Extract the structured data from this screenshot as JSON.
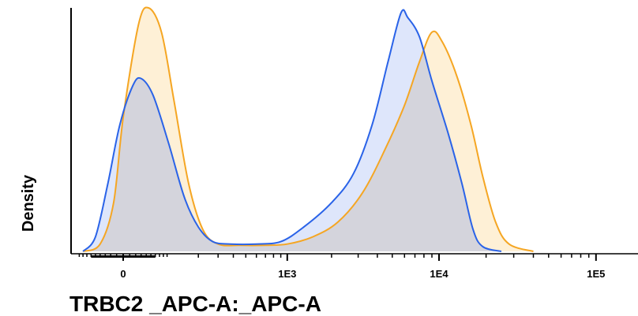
{
  "chart_data": {
    "type": "area",
    "xlabel": "TRBC2 _APC-A:_APC-A",
    "ylabel": "Density",
    "x_scale": "biexponential",
    "x_ticks": [
      {
        "value": 0,
        "label": "0"
      },
      {
        "value": 1000,
        "label": "1E3"
      },
      {
        "value": 10000,
        "label": "1E4"
      },
      {
        "value": 100000,
        "label": "1E5"
      }
    ],
    "ylim": [
      0,
      1
    ],
    "grid": false,
    "legend": "none",
    "overlap_color": "#d4d4dc",
    "series": [
      {
        "color": "#f5a623",
        "fill": "#fdebc8",
        "points": [
          [
            -80,
            0.0
          ],
          [
            -40,
            0.03
          ],
          [
            -15,
            0.2
          ],
          [
            0,
            0.55
          ],
          [
            25,
            0.93
          ],
          [
            45,
            1.0
          ],
          [
            75,
            0.9
          ],
          [
            110,
            0.62
          ],
          [
            160,
            0.28
          ],
          [
            220,
            0.09
          ],
          [
            300,
            0.03
          ],
          [
            450,
            0.025
          ],
          [
            700,
            0.025
          ],
          [
            1000,
            0.03
          ],
          [
            1500,
            0.06
          ],
          [
            2200,
            0.12
          ],
          [
            3200,
            0.24
          ],
          [
            4500,
            0.42
          ],
          [
            6000,
            0.6
          ],
          [
            7500,
            0.78
          ],
          [
            9000,
            0.9
          ],
          [
            10500,
            0.86
          ],
          [
            13000,
            0.72
          ],
          [
            16000,
            0.52
          ],
          [
            19000,
            0.31
          ],
          [
            23000,
            0.12
          ],
          [
            28000,
            0.03
          ],
          [
            40000,
            0.0
          ]
        ]
      },
      {
        "color": "#2a63e8",
        "fill": "#d3defa",
        "points": [
          [
            -80,
            0.0
          ],
          [
            -50,
            0.06
          ],
          [
            -25,
            0.28
          ],
          [
            -5,
            0.52
          ],
          [
            15,
            0.68
          ],
          [
            30,
            0.71
          ],
          [
            55,
            0.64
          ],
          [
            95,
            0.44
          ],
          [
            145,
            0.22
          ],
          [
            200,
            0.1
          ],
          [
            270,
            0.04
          ],
          [
            380,
            0.03
          ],
          [
            600,
            0.03
          ],
          [
            900,
            0.04
          ],
          [
            1300,
            0.1
          ],
          [
            2000,
            0.2
          ],
          [
            2800,
            0.32
          ],
          [
            3700,
            0.52
          ],
          [
            4700,
            0.78
          ],
          [
            5700,
            0.98
          ],
          [
            6300,
            0.96
          ],
          [
            7500,
            0.88
          ],
          [
            9000,
            0.7
          ],
          [
            11500,
            0.48
          ],
          [
            14000,
            0.28
          ],
          [
            16500,
            0.09
          ],
          [
            19000,
            0.02
          ],
          [
            25000,
            0.0
          ]
        ]
      }
    ]
  }
}
